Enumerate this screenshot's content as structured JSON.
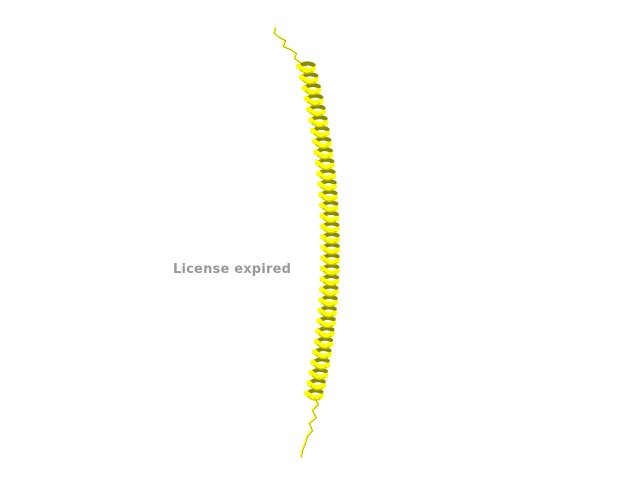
{
  "overlay": {
    "license_text": "License expired"
  },
  "render": {
    "background_color": "#ffffff",
    "structure_color": "#ffff00",
    "structure_shadow_color": "#8a8a00",
    "structure_edge_color": "#c8c800",
    "label_color": "#999999",
    "representation": "cartoon-helix"
  }
}
